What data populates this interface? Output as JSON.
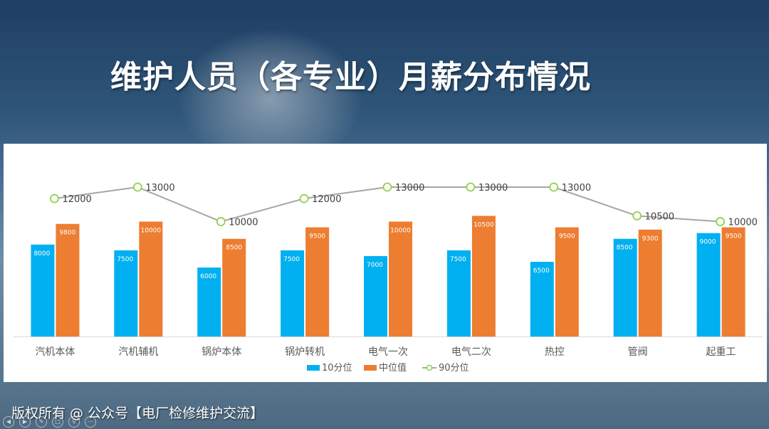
{
  "title": "维护人员（各专业）月薪分布情况",
  "footer": "版权所有 @ 公众号【电厂检修维护交流】",
  "colors": {
    "p10": "#00b0f0",
    "median": "#ed7d31",
    "p90_line": "#a6a6a6",
    "p90_marker": "#92d050"
  },
  "toolbar_icons": [
    "prev-icon",
    "next-icon",
    "pen-icon",
    "slides-icon",
    "zoom-icon",
    "more-icon"
  ],
  "chart_data": {
    "type": "bar",
    "categories": [
      "汽机本体",
      "汽机辅机",
      "锅炉本体",
      "锅炉转机",
      "电气一次",
      "电气二次",
      "热控",
      "管阀",
      "起重工"
    ],
    "series": [
      {
        "name": "10分位",
        "type": "bar",
        "values": [
          8000,
          7500,
          6000,
          7500,
          7000,
          7500,
          6500,
          8500,
          9000
        ]
      },
      {
        "name": "中位值",
        "type": "bar",
        "values": [
          9800,
          10000,
          8500,
          9500,
          10000,
          10500,
          9500,
          9300,
          9500
        ]
      },
      {
        "name": "90分位",
        "type": "line",
        "values": [
          12000,
          13000,
          10000,
          12000,
          13000,
          13000,
          13000,
          10500,
          10000
        ]
      }
    ],
    "legend_position": "bottom",
    "grid": false
  }
}
